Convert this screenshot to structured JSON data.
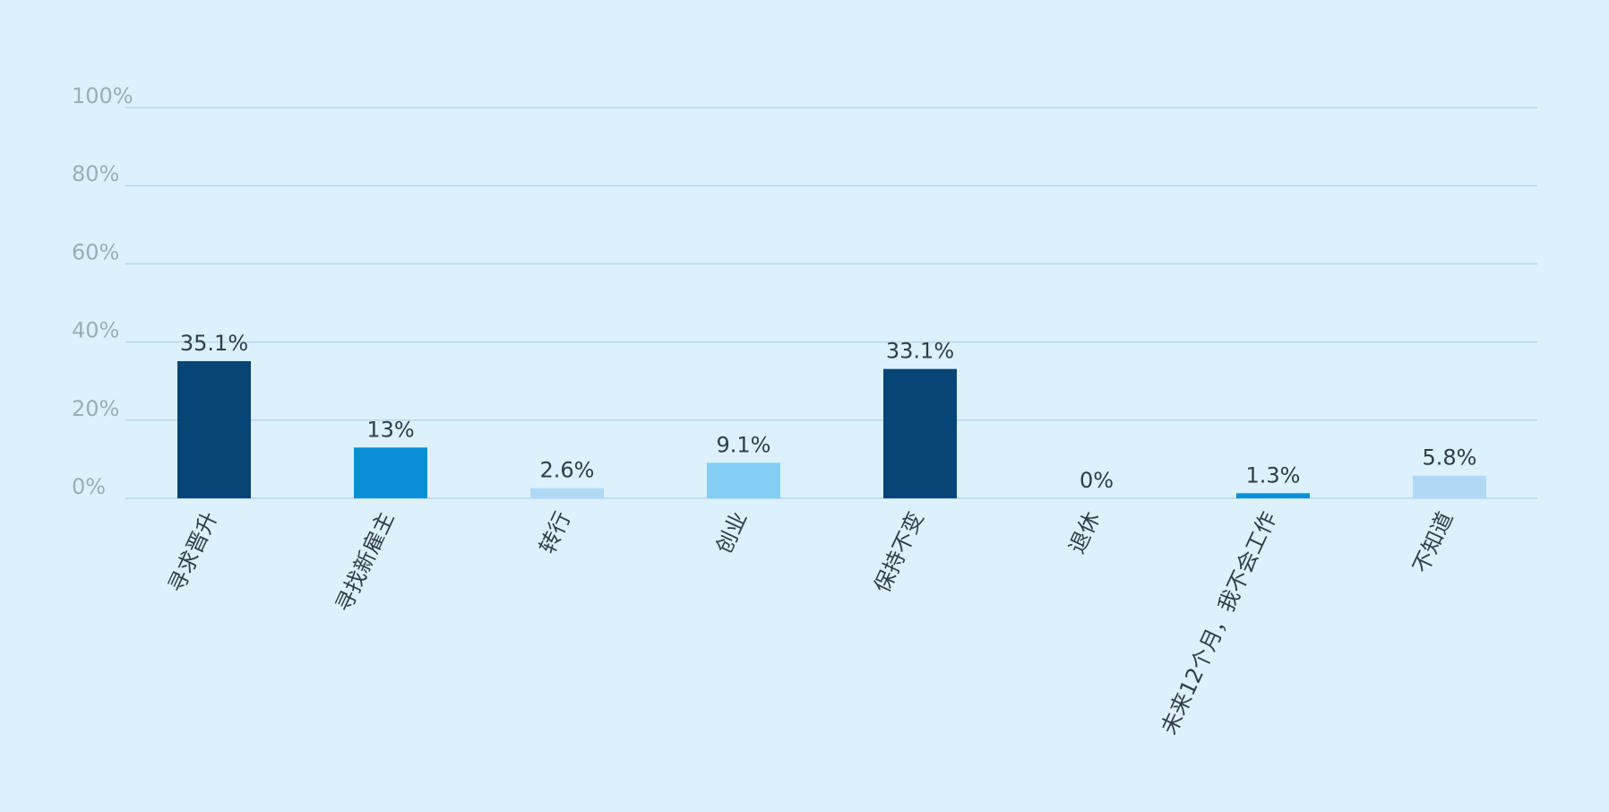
{
  "chart_data": {
    "type": "bar",
    "categories": [
      "寻求晋升",
      "寻找新雇主",
      "转行",
      "创业",
      "保持不变",
      "退休",
      "未来12个月，我不会工作",
      "不知道"
    ],
    "values": [
      35.1,
      13,
      2.6,
      9.1,
      33.1,
      0,
      1.3,
      5.8
    ],
    "value_labels": [
      "35.1%",
      "13%",
      "2.6%",
      "9.1%",
      "33.1%",
      "0%",
      "1.3%",
      "5.8%"
    ],
    "bar_colors": [
      "#084577",
      "#0a8fd6",
      "#b0d9f6",
      "#84cef3",
      "#084577",
      "#b0d9f6",
      "#0a8fd6",
      "#b0d9f6"
    ],
    "ylim": [
      0,
      100
    ],
    "yticks": [
      0,
      20,
      40,
      60,
      80,
      100
    ],
    "ytick_labels": [
      "0%",
      "20%",
      "40%",
      "60%",
      "80%",
      "100%"
    ],
    "grid": true,
    "title": "",
    "xlabel": "",
    "ylabel": ""
  },
  "colors": {
    "background": "#dcf1fc",
    "grid": "#b9d6ea",
    "tick_text": "#97aebb",
    "label_text": "#2f3d48"
  }
}
